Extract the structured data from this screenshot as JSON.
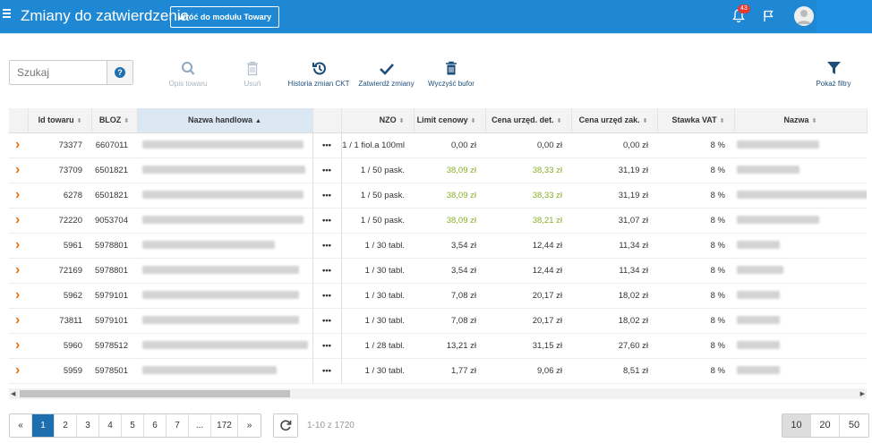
{
  "header": {
    "title": "Zmiany do zatwierdzenia",
    "back_button": "Wróć do modułu Towary",
    "notifications_count": "43"
  },
  "search": {
    "placeholder": "Szukaj",
    "help": "?"
  },
  "toolbar": {
    "product_description": "Opis towaru",
    "delete": "Usuń",
    "ckt_history": "Historia zmian CKT",
    "approve_changes": "Zatwierdź zmiany",
    "clear_buffer": "Wyczyść bufor",
    "show_filters": "Pokaż filtry"
  },
  "table": {
    "columns": [
      "Id towaru",
      "BLOZ",
      "Nazwa handlowa",
      "NZO",
      "Limit cenowy",
      "Cena urzęd. det.",
      "Cena urzęd zak.",
      "Stawka VAT",
      "Nazwa"
    ],
    "rows": [
      {
        "id": "73377",
        "bloz": "6607011",
        "nzo": "1 / 1 fiol.a 100ml",
        "limit": "0,00 zł",
        "det": "0,00 zł",
        "zak": "0,00 zł",
        "vat": "8 %",
        "limit_green": false,
        "det_green": false
      },
      {
        "id": "73709",
        "bloz": "6501821",
        "nzo": "1 / 50 pask.",
        "limit": "38,09 zł",
        "det": "38,33 zł",
        "zak": "31,19 zł",
        "vat": "8 %",
        "limit_green": true,
        "det_green": true
      },
      {
        "id": "6278",
        "bloz": "6501821",
        "nzo": "1 / 50 pask.",
        "limit": "38,09 zł",
        "det": "38,33 zł",
        "zak": "31,19 zł",
        "vat": "8 %",
        "limit_green": true,
        "det_green": true
      },
      {
        "id": "72220",
        "bloz": "9053704",
        "nzo": "1 / 50 pask.",
        "limit": "38,09 zł",
        "det": "38,21 zł",
        "zak": "31,07 zł",
        "vat": "8 %",
        "limit_green": true,
        "det_green": true
      },
      {
        "id": "5961",
        "bloz": "5978801",
        "nzo": "1 / 30 tabl.",
        "limit": "3,54 zł",
        "det": "12,44 zł",
        "zak": "11,34 zł",
        "vat": "8 %",
        "limit_green": false,
        "det_green": false
      },
      {
        "id": "72169",
        "bloz": "5978801",
        "nzo": "1 / 30 tabl.",
        "limit": "3,54 zł",
        "det": "12,44 zł",
        "zak": "11,34 zł",
        "vat": "8 %",
        "limit_green": false,
        "det_green": false
      },
      {
        "id": "5962",
        "bloz": "5979101",
        "nzo": "1 / 30 tabl.",
        "limit": "7,08 zł",
        "det": "20,17 zł",
        "zak": "18,02 zł",
        "vat": "8 %",
        "limit_green": false,
        "det_green": false
      },
      {
        "id": "73811",
        "bloz": "5979101",
        "nzo": "1 / 30 tabl.",
        "limit": "7,08 zł",
        "det": "20,17 zł",
        "zak": "18,02 zł",
        "vat": "8 %",
        "limit_green": false,
        "det_green": false
      },
      {
        "id": "5960",
        "bloz": "5978512",
        "nzo": "1 / 28 tabl.",
        "limit": "13,21 zł",
        "det": "31,15 zł",
        "zak": "27,60 zł",
        "vat": "8 %",
        "limit_green": false,
        "det_green": false
      },
      {
        "id": "5959",
        "bloz": "5978501",
        "nzo": "1 / 30 tabl.",
        "limit": "1,77 zł",
        "det": "9,06 zł",
        "zak": "8,51 zł",
        "vat": "8 %",
        "limit_green": false,
        "det_green": false
      }
    ]
  },
  "pagination": {
    "pages": [
      "«",
      "1",
      "2",
      "3",
      "4",
      "5",
      "6",
      "7",
      "...",
      "172",
      "»"
    ],
    "active_page": "1",
    "count_label": "1-10 z 1720",
    "page_sizes": [
      "10",
      "20",
      "50"
    ],
    "active_size": "10"
  },
  "colors": {
    "topbar": "#1e88d4",
    "accent": "#1e6fb0",
    "green_value": "#8aae2a",
    "expand_arrow": "#e0761b"
  },
  "icons": [
    "menu-icon",
    "bell-icon",
    "flag-icon",
    "avatar-icon",
    "search-icon",
    "trash-icon",
    "history-icon",
    "check-icon",
    "filter-icon",
    "refresh-icon"
  ]
}
